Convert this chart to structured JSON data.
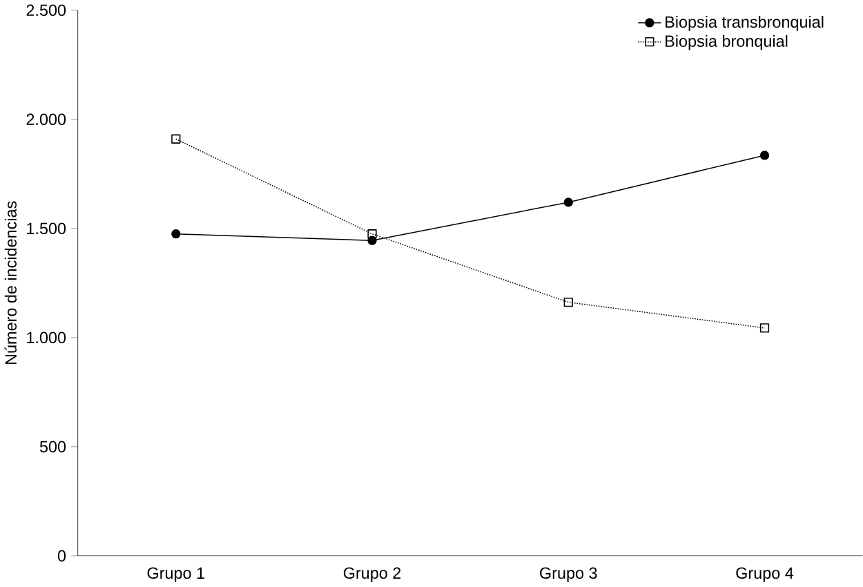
{
  "chart_data": {
    "type": "line",
    "ylabel": "Número de incidencias",
    "categories": [
      "Grupo 1",
      "Grupo 2",
      "Grupo 3",
      "Grupo 4"
    ],
    "series": [
      {
        "name": "Biopsia transbronquial",
        "color": "#000000",
        "marker": "circle",
        "line_style": "solid",
        "values": [
          1475,
          1445,
          1620,
          1835
        ]
      },
      {
        "name": "Biopsia bronquial",
        "color": "#000000",
        "marker": "square",
        "line_style": "dotted",
        "values": [
          1910,
          1475,
          1162,
          1044
        ]
      }
    ],
    "ylim": [
      0,
      2500
    ],
    "yticks": [
      0,
      500,
      {
        "value": 1000,
        "label": "1.000"
      },
      {
        "value": 1500,
        "label": "1.500"
      },
      {
        "value": 2000,
        "label": "2.000"
      },
      {
        "value": 2500,
        "label": "2.500"
      }
    ],
    "grid": false,
    "legend": "top right"
  }
}
